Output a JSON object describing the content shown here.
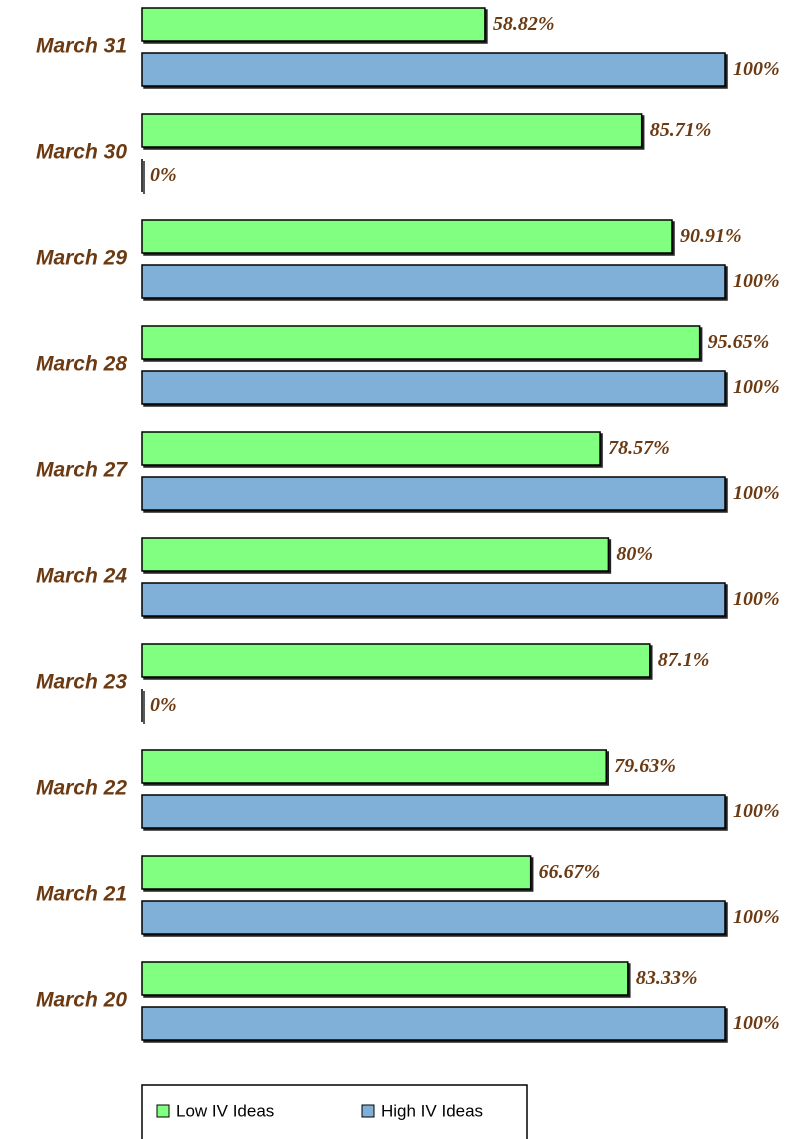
{
  "chart_data": {
    "type": "bar",
    "orientation": "horizontal",
    "categories": [
      "March 31",
      "March 30",
      "March 29",
      "March 28",
      "March 27",
      "March 24",
      "March 23",
      "March 22",
      "March 21",
      "March 20"
    ],
    "series": [
      {
        "name": "Low IV Ideas",
        "color": "#80ff80",
        "values": [
          58.82,
          85.71,
          90.91,
          95.65,
          78.57,
          80,
          87.1,
          79.63,
          66.67,
          83.33
        ],
        "value_labels": [
          "58.82%",
          "85.71%",
          "90.91%",
          "95.65%",
          "78.57%",
          "80%",
          "87.1%",
          "79.63%",
          "66.67%",
          "83.33%"
        ]
      },
      {
        "name": "High IV Ideas",
        "color": "#80b0d8",
        "values": [
          100,
          0,
          100,
          100,
          100,
          100,
          0,
          100,
          100,
          100
        ],
        "value_labels": [
          "100%",
          "0%",
          "100%",
          "100%",
          "100%",
          "100%",
          "0%",
          "100%",
          "100%",
          "100%"
        ]
      }
    ],
    "xlim": [
      0,
      100
    ],
    "legend": "bottom"
  }
}
